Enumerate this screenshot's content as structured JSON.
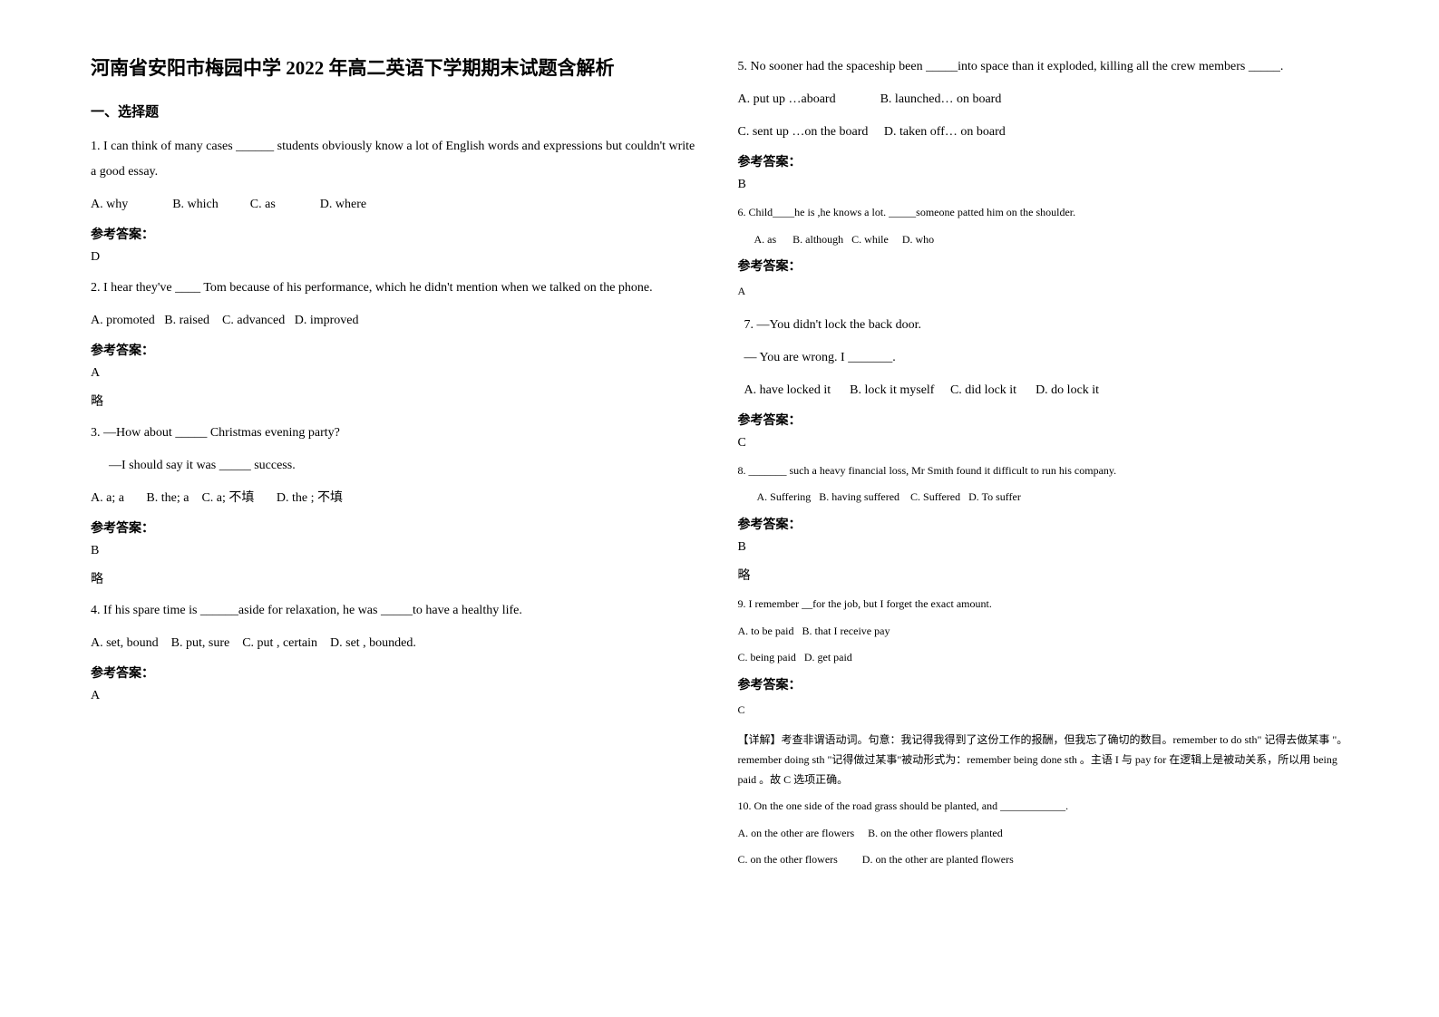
{
  "title": "河南省安阳市梅园中学 2022 年高二英语下学期期末试题含解析",
  "section_header": "一、选择题",
  "left_column": {
    "q1": {
      "text": "1. I can think of many cases ______ students obviously know a lot of English words and expressions but couldn't write a good essay.",
      "options": "A. why              B. which          C. as              D. where",
      "answer_label": "参考答案：",
      "answer": "D"
    },
    "q2": {
      "text": "2. I hear they've ____ Tom because of his performance, which he didn't mention when we talked on the phone.",
      "options": "A. promoted   B. raised    C. advanced   D. improved",
      "answer_label": "参考答案：",
      "answer": "A",
      "omit": "略"
    },
    "q3": {
      "line1": "3. —How about _____ Christmas evening party?",
      "line2": "—I should say it was _____ success.",
      "options": "A. a; a       B. the; a    C. a; 不填       D. the ; 不填",
      "answer_label": "参考答案：",
      "answer": "B",
      "omit": "略"
    },
    "q4": {
      "text": "4. If his spare time is ______aside for relaxation, he was _____to have a healthy life.",
      "options": "A. set, bound    B. put, sure    C. put , certain    D. set , bounded.",
      "answer_label": "参考答案：",
      "answer": "A"
    }
  },
  "right_column": {
    "q5": {
      "text": "5. No sooner had the spaceship been _____into space than it exploded, killing all the crew members _____.",
      "options_line1": "A. put up …aboard              B. launched… on board",
      "options_line2": "C. sent up …on the board     D. taken off… on board",
      "answer_label": "参考答案：",
      "answer": "B"
    },
    "q6": {
      "text": "6. Child____he is ,he knows a lot. _____someone patted him on the shoulder.",
      "options": "      A. as      B. although   C. while     D. who",
      "answer_label": "参考答案：",
      "answer": "A"
    },
    "q7": {
      "line1": "  7. —You didn't lock the back door.",
      "line2": "  — You are wrong. I _______.",
      "options": "  A. have locked it      B. lock it myself     C. did lock it      D. do lock it",
      "answer_label": "参考答案：",
      "answer": "C"
    },
    "q8": {
      "text": "8. _______ such a heavy financial loss, Mr Smith found it difficult to run his company.",
      "options": "       A. Suffering   B. having suffered    C. Suffered   D. To suffer",
      "answer_label": "参考答案：",
      "answer": "B",
      "omit": "略"
    },
    "q9": {
      "text": "9. I remember __for the job, but I forget the exact amount.",
      "options_line1": "A. to be paid   B. that I receive pay",
      "options_line2": "C. being paid   D. get paid",
      "answer_label": "参考答案：",
      "answer": "C",
      "explanation": "【详解】考查非谓语动词。句意：我记得我得到了这份工作的报酬，但我忘了确切的数目。remember to do sth\" 记得去做某事 \"。 remember doing sth \"记得做过某事\"被动形式为：remember being done sth 。主语 I 与 pay for 在逻辑上是被动关系，所以用 being paid 。故 C 选项正确。"
    },
    "q10": {
      "text": "10. On the one side of the road grass should be planted, and ____________.",
      "options_line1": "A. on the other are flowers     B. on the other flowers planted",
      "options_line2": "C. on the other flowers         D. on the other are planted flowers"
    }
  }
}
